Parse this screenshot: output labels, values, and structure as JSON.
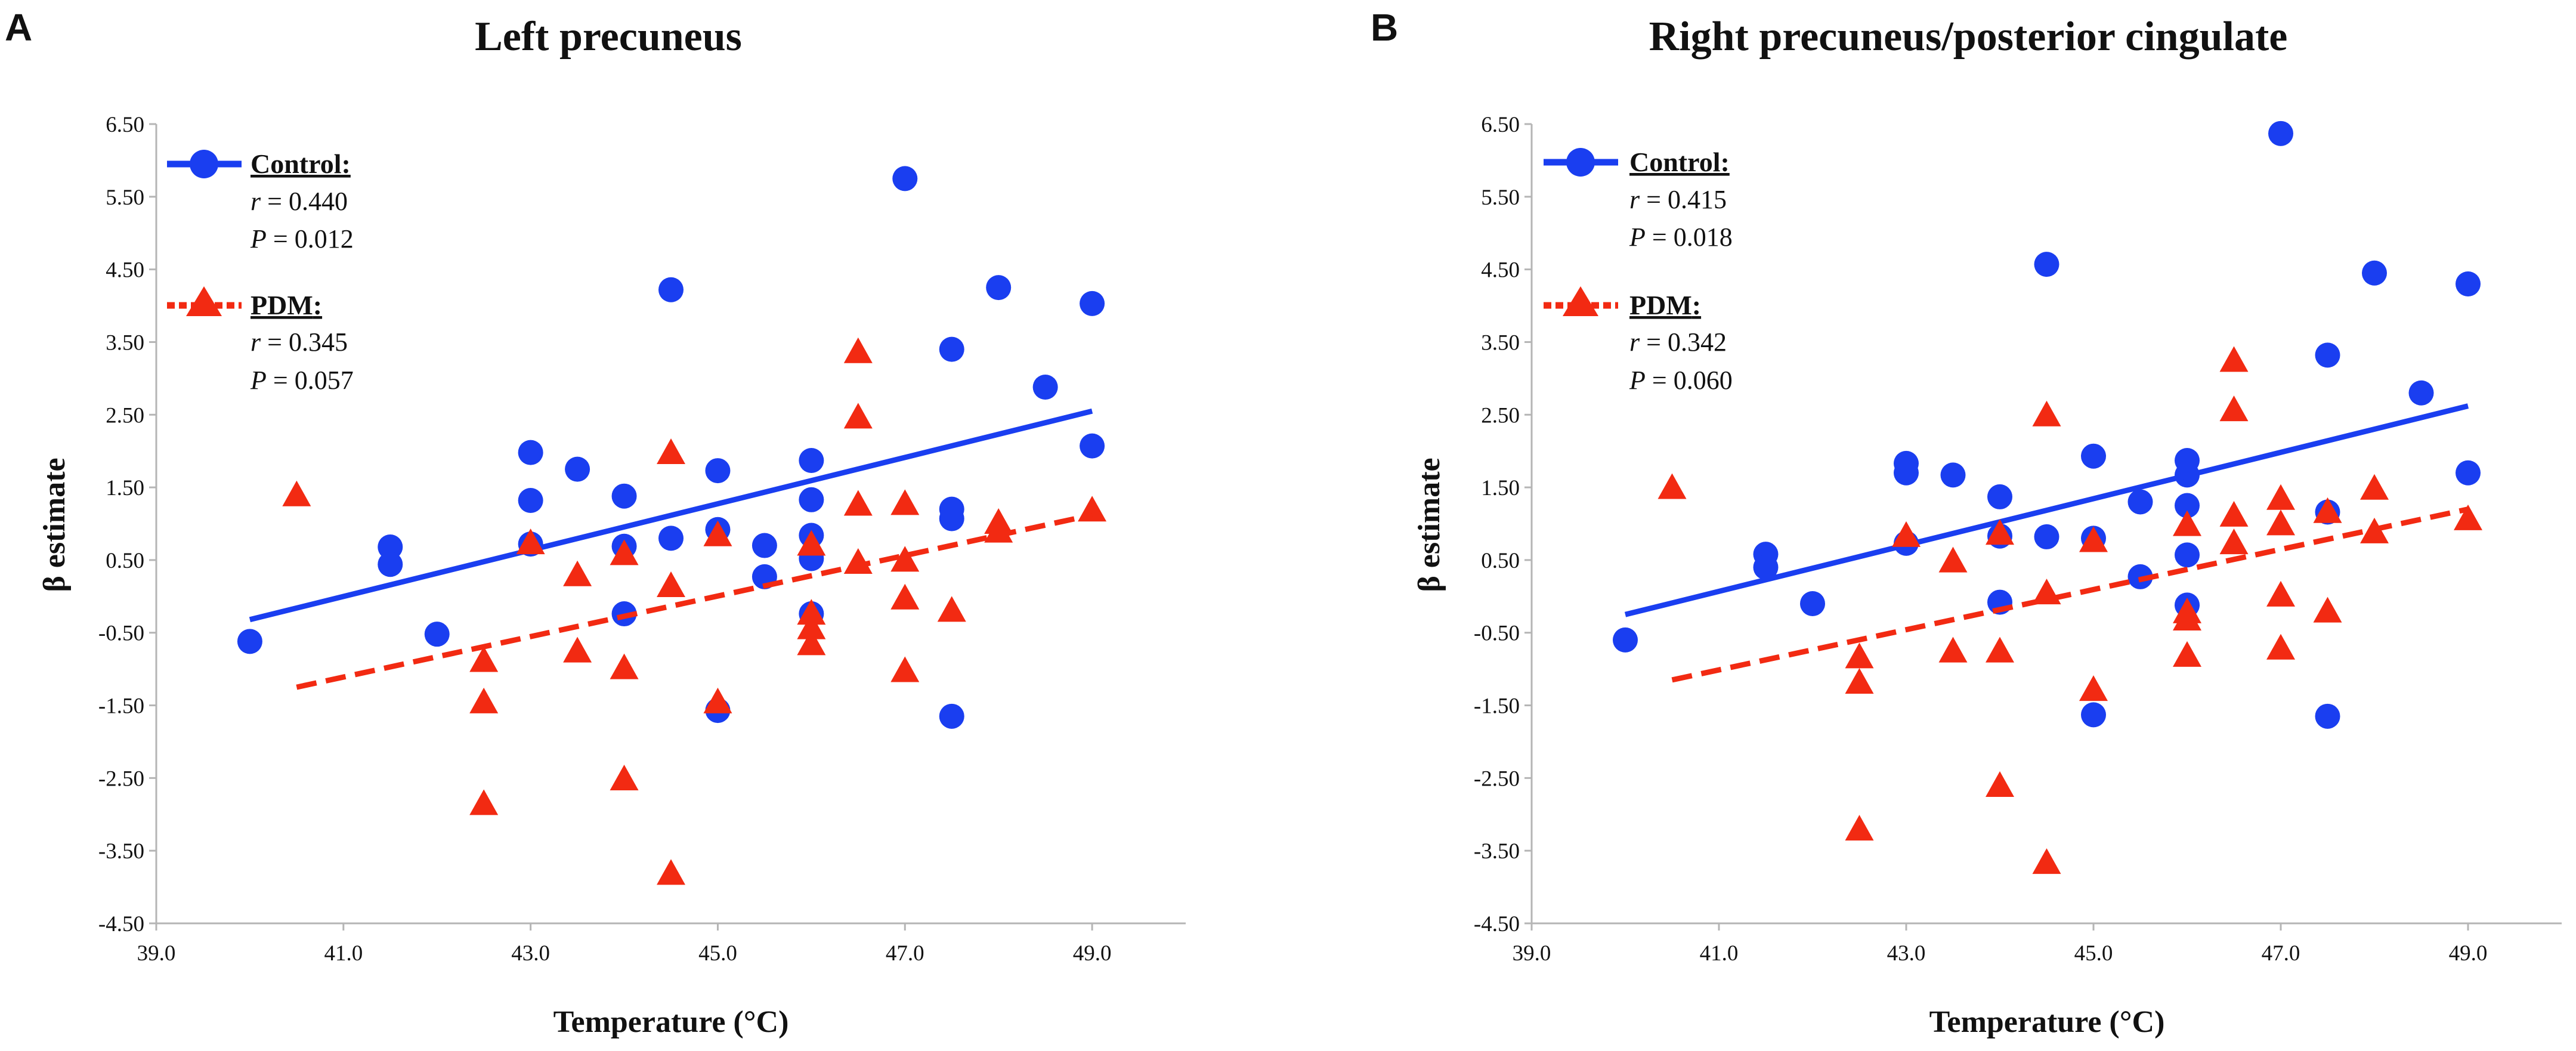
{
  "panels": [
    {
      "panel_label": "A",
      "legend": {
        "control": {
          "name": "Control",
          "r_prefix": "r",
          "r_value": " = 0.440",
          "p_prefix": "P",
          "p_value": " = 0.012"
        },
        "pdm": {
          "name": "PDM",
          "r_prefix": "r",
          "r_value": " = 0.345",
          "p_prefix": "P",
          "p_value": " = 0.057"
        }
      }
    },
    {
      "panel_label": "B",
      "legend": {
        "control": {
          "name": "Control",
          "r_prefix": "r",
          "r_value": " = 0.415",
          "p_prefix": "P",
          "p_value": " = 0.018"
        },
        "pdm": {
          "name": "PDM",
          "r_prefix": "r",
          "r_value": " = 0.342",
          "p_prefix": "P",
          "p_value": " = 0.060"
        }
      }
    }
  ],
  "colors": {
    "control": "#1a3ef0",
    "pdm": "#f22a12",
    "axis": "#b5b5b5",
    "text": "#111111"
  },
  "chart_data": [
    {
      "type": "scatter",
      "title": "Left precuneus",
      "xlabel": "Temperature (°C)",
      "ylabel": "β estimate",
      "xlim": [
        39.0,
        50.0
      ],
      "ylim": [
        -4.5,
        6.5
      ],
      "x_ticks": [
        "39.0",
        "41.0",
        "43.0",
        "45.0",
        "47.0",
        "49.0"
      ],
      "x_tick_values": [
        39,
        41,
        43,
        45,
        47,
        49
      ],
      "y_ticks": [
        "6.50",
        "5.50",
        "4.50",
        "3.50",
        "2.50",
        "1.50",
        "0.50",
        "-0.50",
        "-1.50",
        "-2.50",
        "-3.50",
        "-4.50"
      ],
      "y_tick_values": [
        6.5,
        5.5,
        4.5,
        3.5,
        2.5,
        1.5,
        0.5,
        -0.5,
        -1.5,
        -2.5,
        -3.5,
        -4.5
      ],
      "series": [
        {
          "name": "Control",
          "marker": "circle",
          "line": "solid",
          "x": [
            40.0,
            41.5,
            41.5,
            42.0,
            43.0,
            43.0,
            43.0,
            43.5,
            44.0,
            44.0,
            44.0,
            44.5,
            44.5,
            45.0,
            45.0,
            45.0,
            45.5,
            45.5,
            46.0,
            46.0,
            46.0,
            46.0,
            46.0,
            47.0,
            47.5,
            47.5,
            47.5,
            47.5,
            48.0,
            48.5,
            49.0,
            49.0
          ],
          "y": [
            -0.62,
            0.68,
            0.44,
            -0.52,
            1.98,
            1.32,
            0.72,
            1.75,
            1.38,
            0.69,
            -0.24,
            4.22,
            0.8,
            1.73,
            0.92,
            -1.57,
            0.7,
            0.27,
            1.87,
            1.33,
            0.84,
            0.52,
            -0.24,
            5.75,
            1.2,
            1.07,
            3.4,
            -1.65,
            4.25,
            2.88,
            4.03,
            2.07
          ],
          "trend": {
            "x": [
              40.0,
              49.0
            ],
            "y": [
              -0.32,
              2.55
            ]
          }
        },
        {
          "name": "PDM",
          "marker": "triangle",
          "line": "dashed",
          "x": [
            40.5,
            42.5,
            42.5,
            42.5,
            43.0,
            43.5,
            43.5,
            44.0,
            44.0,
            44.0,
            44.5,
            44.5,
            44.5,
            45.0,
            45.0,
            46.0,
            46.0,
            46.0,
            46.0,
            46.5,
            46.5,
            46.5,
            46.5,
            47.0,
            47.0,
            47.0,
            47.0,
            47.5,
            48.0,
            48.0,
            49.0
          ],
          "y": [
            1.38,
            -0.9,
            -1.47,
            -2.87,
            0.72,
            0.28,
            -0.77,
            0.57,
            -1.0,
            -2.53,
            1.96,
            0.13,
            -3.83,
            0.83,
            -1.47,
            0.7,
            -0.25,
            -0.45,
            -0.67,
            3.35,
            2.45,
            1.25,
            0.45,
            1.26,
            0.48,
            -0.04,
            -1.04,
            -0.21,
            1.0,
            0.88,
            1.17
          ],
          "trend": {
            "x": [
              40.5,
              49.0
            ],
            "y": [
              -1.25,
              1.12
            ]
          }
        }
      ]
    },
    {
      "type": "scatter",
      "title": "Right precuneus/posterior cingulate",
      "xlabel": "Temperature (°C)",
      "ylabel": "β estimate",
      "xlim": [
        39.0,
        50.0
      ],
      "ylim": [
        -4.5,
        6.5
      ],
      "x_ticks": [
        "39.0",
        "41.0",
        "43.0",
        "45.0",
        "47.0",
        "49.0"
      ],
      "x_tick_values": [
        39,
        41,
        43,
        45,
        47,
        49
      ],
      "y_ticks": [
        "6.50",
        "5.50",
        "4.50",
        "3.50",
        "2.50",
        "1.50",
        "0.50",
        "-0.50",
        "-1.50",
        "-2.50",
        "-3.50",
        "-4.50"
      ],
      "y_tick_values": [
        6.5,
        5.5,
        4.5,
        3.5,
        2.5,
        1.5,
        0.5,
        -0.5,
        -1.5,
        -2.5,
        -3.5,
        -4.5
      ],
      "series": [
        {
          "name": "Control",
          "marker": "circle",
          "line": "solid",
          "x": [
            40.0,
            41.5,
            41.5,
            42.0,
            43.0,
            43.0,
            43.0,
            43.5,
            44.0,
            44.0,
            44.0,
            44.5,
            44.5,
            45.0,
            45.0,
            45.0,
            45.5,
            45.5,
            46.0,
            46.0,
            46.0,
            46.0,
            46.0,
            47.0,
            47.5,
            47.5,
            47.5,
            48.0,
            48.5,
            49.0,
            49.0
          ],
          "y": [
            -0.6,
            0.58,
            0.4,
            -0.1,
            1.83,
            1.7,
            0.73,
            1.67,
            1.37,
            0.83,
            -0.08,
            4.57,
            0.82,
            1.93,
            0.8,
            -1.63,
            1.3,
            0.27,
            1.87,
            1.67,
            1.25,
            0.57,
            -0.12,
            6.37,
            1.16,
            3.32,
            -1.65,
            4.45,
            2.8,
            4.3,
            1.7
          ],
          "trend": {
            "x": [
              40.0,
              49.0
            ],
            "y": [
              -0.25,
              2.62
            ]
          }
        },
        {
          "name": "PDM",
          "marker": "triangle",
          "line": "dashed",
          "x": [
            40.5,
            42.5,
            42.5,
            42.5,
            43.0,
            43.5,
            43.5,
            44.0,
            44.0,
            44.0,
            44.5,
            44.5,
            44.5,
            45.0,
            45.0,
            46.0,
            46.0,
            46.0,
            46.0,
            46.5,
            46.5,
            46.5,
            46.5,
            47.0,
            47.0,
            47.0,
            47.0,
            47.5,
            47.5,
            48.0,
            48.0,
            49.0
          ],
          "y": [
            1.48,
            -0.85,
            -1.2,
            -3.22,
            0.82,
            0.47,
            -0.77,
            0.85,
            -0.77,
            -2.62,
            2.48,
            0.03,
            -3.68,
            0.75,
            -1.3,
            0.97,
            -0.33,
            -0.23,
            -0.83,
            3.23,
            2.55,
            1.1,
            0.72,
            1.33,
            0.98,
            0.0,
            -0.73,
            1.15,
            -0.22,
            1.47,
            0.87,
            1.05
          ],
          "trend": {
            "x": [
              40.5,
              49.0
            ],
            "y": [
              -1.15,
              1.2
            ]
          }
        }
      ]
    }
  ]
}
